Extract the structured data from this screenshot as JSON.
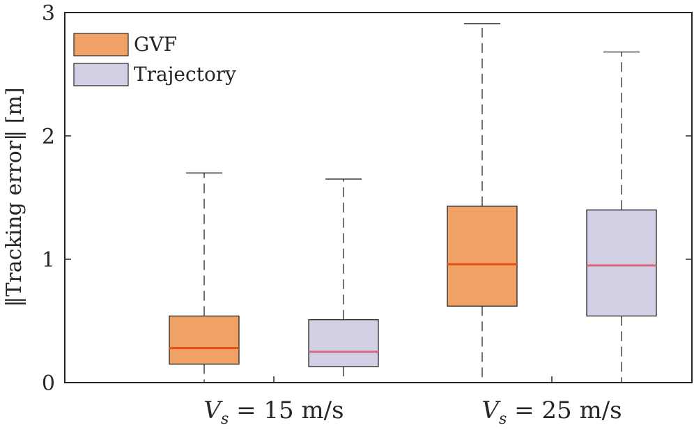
{
  "chart_data": {
    "type": "box",
    "title": "",
    "ylabel": "‖Tracking error‖ [m]",
    "xlabel": "",
    "ylim": [
      0,
      3
    ],
    "yticks": [
      "0",
      "1",
      "2",
      "3"
    ],
    "groups": [
      {
        "label_main": "V",
        "label_sub": "s",
        "label_rest": " = 15 m/s"
      },
      {
        "label_main": "V",
        "label_sub": "s",
        "label_rest": " = 25 m/s"
      }
    ],
    "series": [
      {
        "name": "GVF",
        "fill": "#f0a266",
        "median_color": "#e8500f",
        "boxes": [
          {
            "group": 0,
            "min": 0,
            "q1": 0.15,
            "median": 0.28,
            "q3": 0.54,
            "max": 1.7
          },
          {
            "group": 1,
            "min": 0,
            "q1": 0.62,
            "median": 0.96,
            "q3": 1.43,
            "max": 2.91
          }
        ]
      },
      {
        "name": "Trajectory",
        "fill": "#d3cfe5",
        "median_color": "#d36a7d",
        "boxes": [
          {
            "group": 0,
            "min": 0,
            "q1": 0.13,
            "median": 0.25,
            "q3": 0.51,
            "max": 1.65
          },
          {
            "group": 1,
            "min": 0,
            "q1": 0.54,
            "median": 0.95,
            "q3": 1.4,
            "max": 2.68
          }
        ]
      }
    ],
    "legend": {
      "position": "top-left",
      "entries": [
        "GVF",
        "Trajectory"
      ]
    }
  }
}
